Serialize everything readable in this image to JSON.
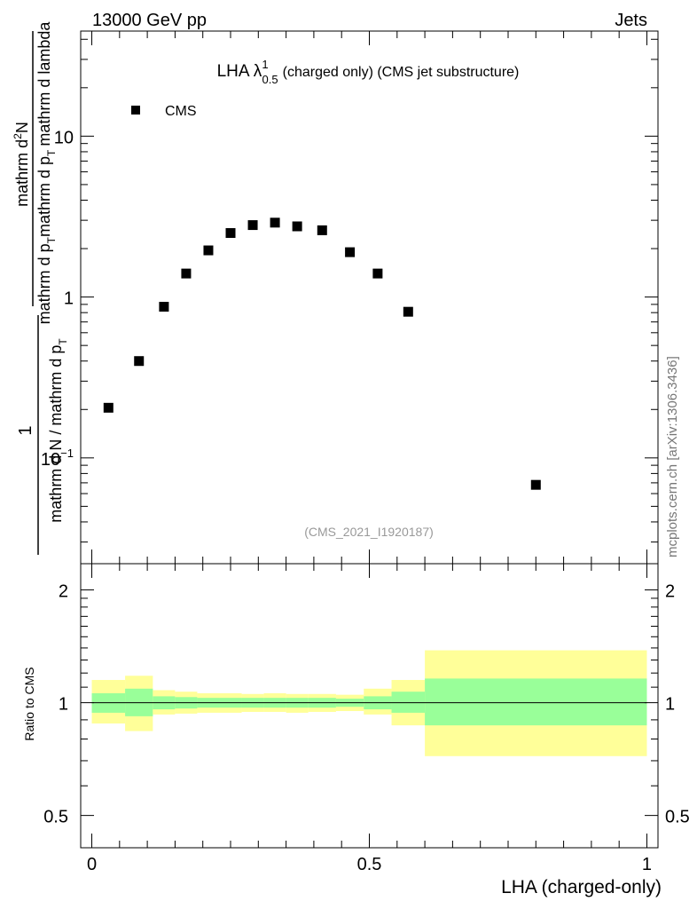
{
  "header": {
    "left": "13000 GeV pp",
    "right": "Jets"
  },
  "side_label": "mcplots.cern.ch [arXiv:1306.3436]",
  "analysis_id": "(CMS_2021_I1920187)",
  "chart_data": [
    {
      "type": "scatter",
      "scale": "log",
      "title": "LHA λ^1_0.5 (charged only) (CMS jet substructure)",
      "title_parts": {
        "prefix": "LHA λ",
        "sup": "1",
        "sub": "0.5",
        "suffix": "(charged only) (CMS jet substructure)"
      },
      "ylabel": "1 / mathrm d N / mathrm d p_T mathrm d^2N / mathrm d p_T mathrm d lambda",
      "ylabel_parts": {
        "numerator": "1",
        "denominator": "mathrm d N / mathrm d p",
        "denominator_sub": "T",
        "right_num_a": "mathrm d",
        "right_num_sup": "2",
        "right_num_b": "N",
        "right_den_a": "mathrm d p",
        "right_den_sub1": "T",
        "right_den_b": "mathrm d p",
        "right_den_sub2": "T",
        "right_den_c": "mathrm d lambda"
      },
      "xlim": [
        -0.02,
        1.02
      ],
      "ylim": [
        0.022,
        45
      ],
      "y_ticks": [
        {
          "value": 10,
          "label": "10"
        },
        {
          "value": 1,
          "label": "1"
        },
        {
          "value": 0.1,
          "label": "10",
          "sup": "−1"
        }
      ],
      "legend": {
        "label": "CMS",
        "placement": "top-left"
      },
      "series": [
        {
          "name": "CMS",
          "x": [
            0.03,
            0.085,
            0.13,
            0.17,
            0.21,
            0.25,
            0.29,
            0.33,
            0.37,
            0.415,
            0.465,
            0.515,
            0.57,
            0.8
          ],
          "y": [
            0.205,
            0.4,
            0.87,
            1.4,
            1.95,
            2.5,
            2.8,
            2.9,
            2.75,
            2.6,
            1.9,
            1.4,
            0.81,
            0.068
          ]
        }
      ]
    },
    {
      "type": "area",
      "ylabel": "Ratio to CMS",
      "xlabel": "LHA (charged-only)",
      "xlim": [
        -0.02,
        1.02
      ],
      "ylim": [
        0.41,
        2.35
      ],
      "x_ticks": [
        {
          "value": 0,
          "label": "0"
        },
        {
          "value": 0.5,
          "label": "0.5"
        },
        {
          "value": 1,
          "label": "1"
        }
      ],
      "y_ticks": [
        {
          "value": 2,
          "label": "2"
        },
        {
          "value": 1,
          "label": "1"
        },
        {
          "value": 0.5,
          "label": "0.5"
        }
      ],
      "reference_line": 1,
      "bins": [
        {
          "lo": 0.0,
          "hi": 0.06,
          "inner": [
            0.94,
            1.06
          ],
          "outer": [
            0.88,
            1.15
          ]
        },
        {
          "lo": 0.06,
          "hi": 0.11,
          "inner": [
            0.92,
            1.09
          ],
          "outer": [
            0.84,
            1.18
          ]
        },
        {
          "lo": 0.11,
          "hi": 0.15,
          "inner": [
            0.96,
            1.04
          ],
          "outer": [
            0.93,
            1.08
          ]
        },
        {
          "lo": 0.15,
          "hi": 0.19,
          "inner": [
            0.965,
            1.035
          ],
          "outer": [
            0.935,
            1.07
          ]
        },
        {
          "lo": 0.19,
          "hi": 0.23,
          "inner": [
            0.97,
            1.03
          ],
          "outer": [
            0.94,
            1.06
          ]
        },
        {
          "lo": 0.23,
          "hi": 0.27,
          "inner": [
            0.97,
            1.03
          ],
          "outer": [
            0.94,
            1.06
          ]
        },
        {
          "lo": 0.27,
          "hi": 0.31,
          "inner": [
            0.97,
            1.03
          ],
          "outer": [
            0.945,
            1.055
          ]
        },
        {
          "lo": 0.31,
          "hi": 0.35,
          "inner": [
            0.97,
            1.03
          ],
          "outer": [
            0.945,
            1.06
          ]
        },
        {
          "lo": 0.35,
          "hi": 0.39,
          "inner": [
            0.97,
            1.03
          ],
          "outer": [
            0.94,
            1.055
          ]
        },
        {
          "lo": 0.39,
          "hi": 0.44,
          "inner": [
            0.97,
            1.03
          ],
          "outer": [
            0.945,
            1.055
          ]
        },
        {
          "lo": 0.44,
          "hi": 0.49,
          "inner": [
            0.975,
            1.025
          ],
          "outer": [
            0.95,
            1.05
          ]
        },
        {
          "lo": 0.49,
          "hi": 0.54,
          "inner": [
            0.96,
            1.04
          ],
          "outer": [
            0.93,
            1.09
          ]
        },
        {
          "lo": 0.54,
          "hi": 0.6,
          "inner": [
            0.94,
            1.07
          ],
          "outer": [
            0.87,
            1.15
          ]
        },
        {
          "lo": 0.6,
          "hi": 1.0,
          "inner": [
            0.87,
            1.16
          ],
          "outer": [
            0.72,
            1.38
          ]
        }
      ],
      "colors": {
        "outer": "#ffff99",
        "inner": "#99ff99",
        "line": "#000000"
      }
    }
  ]
}
